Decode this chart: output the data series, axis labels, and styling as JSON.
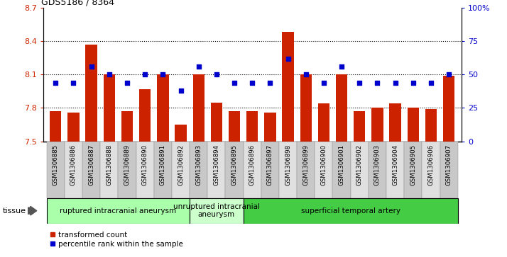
{
  "title": "GDS5186 / 8364",
  "samples": [
    "GSM1306885",
    "GSM1306886",
    "GSM1306887",
    "GSM1306888",
    "GSM1306889",
    "GSM1306890",
    "GSM1306891",
    "GSM1306892",
    "GSM1306893",
    "GSM1306894",
    "GSM1306895",
    "GSM1306896",
    "GSM1306897",
    "GSM1306898",
    "GSM1306899",
    "GSM1306900",
    "GSM1306901",
    "GSM1306902",
    "GSM1306903",
    "GSM1306904",
    "GSM1306905",
    "GSM1306906",
    "GSM1306907"
  ],
  "bar_values": [
    7.77,
    7.76,
    8.37,
    8.1,
    7.77,
    7.97,
    8.1,
    7.65,
    8.1,
    7.85,
    7.77,
    7.77,
    7.76,
    8.48,
    8.1,
    7.84,
    8.1,
    7.77,
    7.8,
    7.84,
    7.8,
    7.79,
    8.09
  ],
  "dot_values": [
    44,
    44,
    56,
    50,
    44,
    50,
    50,
    38,
    56,
    50,
    44,
    44,
    44,
    62,
    50,
    44,
    56,
    44,
    44,
    44,
    44,
    44,
    50
  ],
  "ylim_left": [
    7.5,
    8.7
  ],
  "ylim_right": [
    0,
    100
  ],
  "yticks_left": [
    7.5,
    7.8,
    8.1,
    8.4,
    8.7
  ],
  "yticks_right": [
    0,
    25,
    50,
    75,
    100
  ],
  "ytick_labels_left": [
    "7.5",
    "7.8",
    "8.1",
    "8.4",
    "8.7"
  ],
  "ytick_labels_right": [
    "0",
    "25",
    "50",
    "75",
    "100%"
  ],
  "bar_color": "#CC2200",
  "dot_color": "#0000CC",
  "plot_bg": "#FFFFFF",
  "grid_yticks": [
    7.8,
    8.1,
    8.4
  ],
  "gspans": [
    {
      "start": 0,
      "end": 8,
      "color": "#AAFFAA",
      "label": "ruptured intracranial aneurysm"
    },
    {
      "start": 8,
      "end": 11,
      "color": "#CCFFCC",
      "label": "unruptured intracranial\naneurysm"
    },
    {
      "start": 11,
      "end": 23,
      "color": "#44CC44",
      "label": "superficial temporal artery"
    }
  ],
  "tissue_label": "tissue",
  "legend_bar_label": "transformed count",
  "legend_dot_label": "percentile rank within the sample",
  "tick_bg_colors": [
    "#C8C8C8",
    "#E0E0E0"
  ]
}
